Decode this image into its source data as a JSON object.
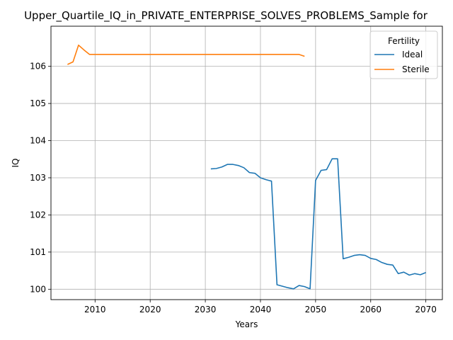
{
  "chart_data": {
    "type": "line",
    "title": "Upper_Quartile_IQ_in_PRIVATE_ENTERPRISE_SOLVES_PROBLEMS_Sample for",
    "xlabel": "Years",
    "ylabel": "IQ",
    "xlim": [
      2002,
      2073
    ],
    "ylim": [
      99.72,
      107.08
    ],
    "xticks": [
      2010,
      2020,
      2030,
      2040,
      2050,
      2060,
      2070
    ],
    "yticks": [
      100,
      101,
      102,
      103,
      104,
      105,
      106
    ],
    "grid": true,
    "legend": {
      "title": "Fertility",
      "placement": "top-right"
    },
    "series": [
      {
        "name": "Ideal",
        "color": "#1f77b4",
        "x": [
          2031,
          2032,
          2033,
          2034,
          2035,
          2036,
          2037,
          2038,
          2039,
          2040,
          2041,
          2042,
          2043,
          2044,
          2045,
          2046,
          2047,
          2048,
          2049,
          2050,
          2051,
          2052,
          2053,
          2054,
          2055,
          2056,
          2057,
          2058,
          2059,
          2060,
          2061,
          2062,
          2063,
          2064,
          2065,
          2066,
          2067,
          2068,
          2069,
          2070
        ],
        "values": [
          103.24,
          103.25,
          103.29,
          103.36,
          103.36,
          103.33,
          103.27,
          103.14,
          103.12,
          103.0,
          102.95,
          102.91,
          100.12,
          100.08,
          100.04,
          100.01,
          100.1,
          100.07,
          100.01,
          102.93,
          103.2,
          103.22,
          103.51,
          103.51,
          100.82,
          100.86,
          100.91,
          100.93,
          100.91,
          100.83,
          100.8,
          100.72,
          100.67,
          100.65,
          100.42,
          100.46,
          100.38,
          100.42,
          100.39,
          100.45
        ]
      },
      {
        "name": "Sterile",
        "color": "#ff7f0e",
        "x": [
          2005,
          2006,
          2007,
          2008,
          2009,
          2010,
          2015,
          2020,
          2025,
          2030,
          2035,
          2040,
          2045,
          2047,
          2048
        ],
        "values": [
          106.05,
          106.12,
          106.57,
          106.44,
          106.32,
          106.32,
          106.32,
          106.32,
          106.32,
          106.32,
          106.32,
          106.32,
          106.32,
          106.32,
          106.27
        ]
      }
    ]
  }
}
